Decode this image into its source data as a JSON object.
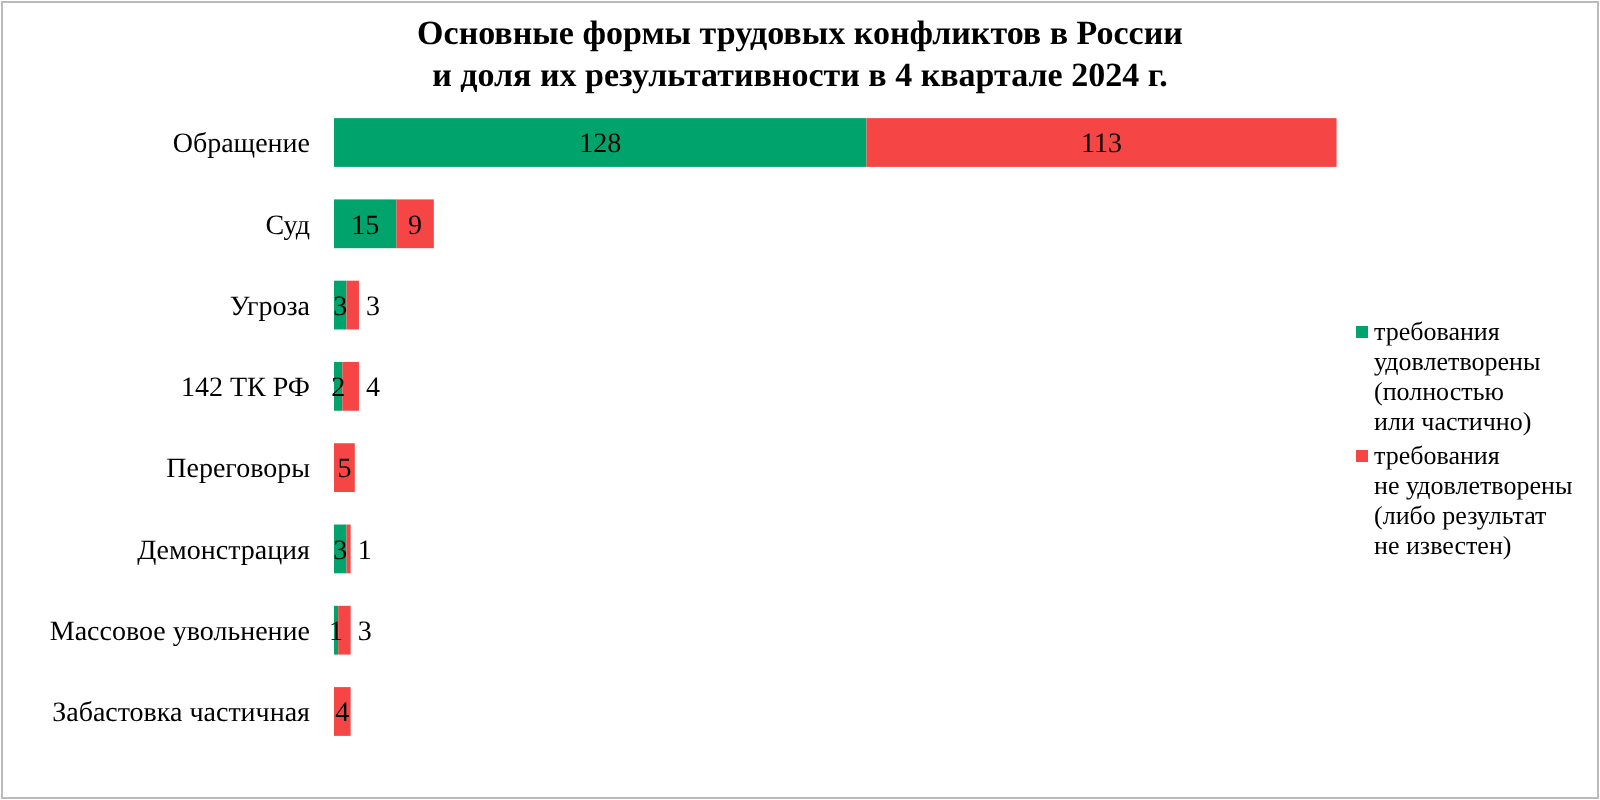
{
  "chart_data": {
    "type": "bar",
    "orientation": "horizontal",
    "stacked": true,
    "title": "Основные формы трудовых конфликтов в России\nи доля их результативности в 4 квартале 2024 г.",
    "categories": [
      "Обращение",
      "Суд",
      "Угроза",
      "142 ТК РФ",
      "Переговоры",
      "Демонстрация",
      "Массовое увольнение",
      "Забастовка частичная"
    ],
    "series": [
      {
        "name": "требования\nудовлетворены\n(полностью\nили частично)",
        "color": "#00a36c",
        "values": [
          128,
          15,
          3,
          2,
          null,
          3,
          1,
          null
        ]
      },
      {
        "name": "требования\nне удовлетворены\n(либо результат\nне известен)",
        "color": "#f64545",
        "values": [
          113,
          9,
          3,
          4,
          5,
          1,
          3,
          4
        ]
      }
    ],
    "xlim": [
      0,
      250
    ],
    "tick_labels": "y",
    "data_labels": true,
    "legend": "right"
  }
}
